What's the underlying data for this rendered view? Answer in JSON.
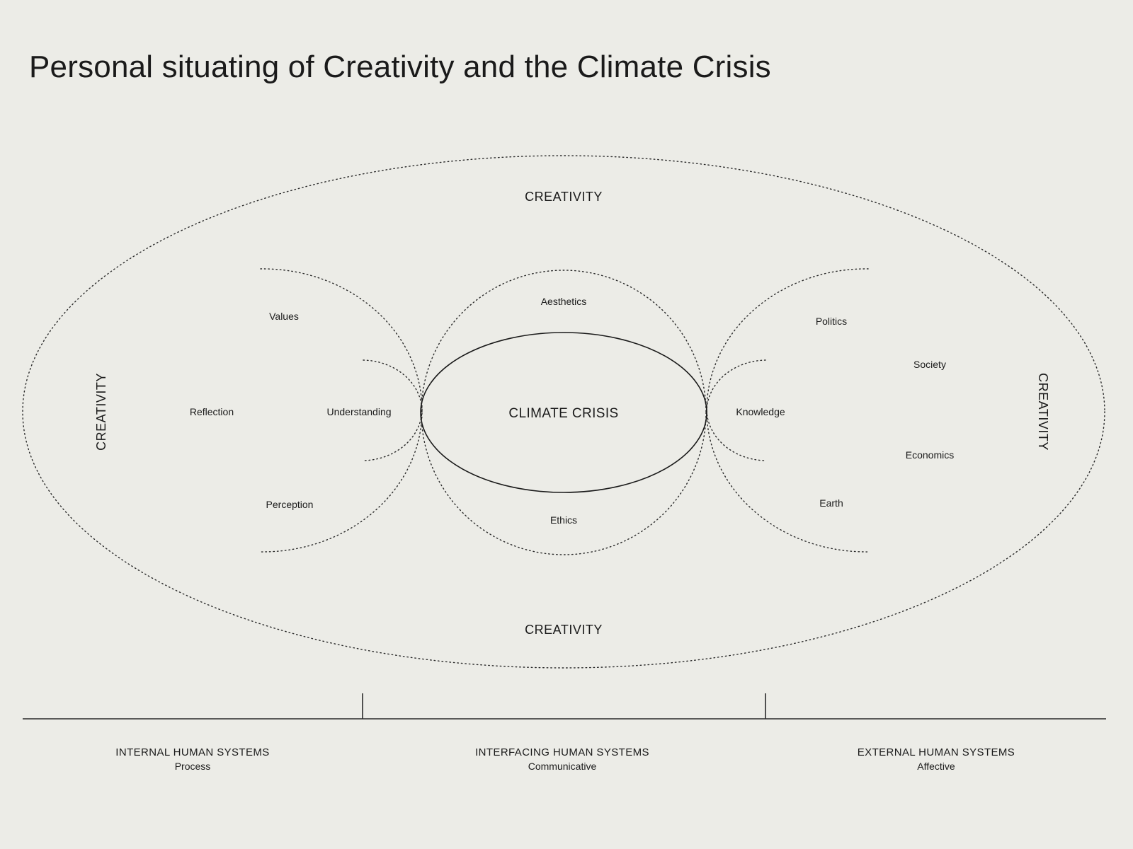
{
  "title": "Personal situating of Creativity and the Climate Crisis",
  "diagram": {
    "outer_label": "CREATIVITY",
    "core": {
      "label": "CLIMATE CRISIS"
    },
    "center_group": {
      "top": "Aesthetics",
      "bottom": "Ethics"
    },
    "left_group": {
      "items": [
        "Values",
        "Reflection",
        "Understanding",
        "Perception"
      ]
    },
    "right_group": {
      "items": [
        "Politics",
        "Society",
        "Knowledge",
        "Economics",
        "Earth"
      ]
    }
  },
  "axis": {
    "sections": [
      {
        "heading": "INTERNAL HUMAN SYSTEMS",
        "sub": "Process"
      },
      {
        "heading": "INTERFACING HUMAN SYSTEMS",
        "sub": "Communicative"
      },
      {
        "heading": "EXTERNAL HUMAN SYSTEMS",
        "sub": "Affective"
      }
    ]
  }
}
